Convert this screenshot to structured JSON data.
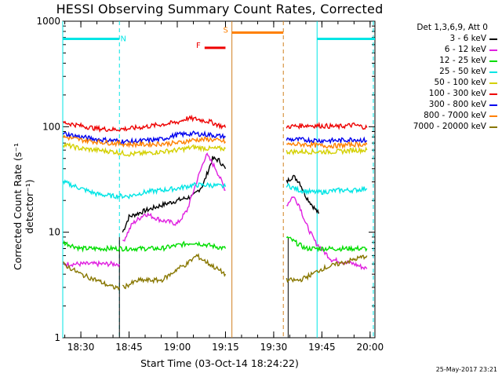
{
  "chart_data": {
    "type": "line",
    "title": "HESSI Observing Summary Count Rates, Corrected",
    "xlabel": "Start Time (03-Oct-14 18:24:22)",
    "ylabel": "Corrected Count Rate (s⁻¹ detector⁻¹)",
    "y_scale": "log",
    "ylim": [
      1,
      1000
    ],
    "xlim": [
      "18:24:22",
      "20:01:30"
    ],
    "y_ticks": [
      {
        "value": 1,
        "label": "1"
      },
      {
        "value": 10,
        "label": "10"
      },
      {
        "value": 100,
        "label": "100"
      },
      {
        "value": 1000,
        "label": "1000"
      }
    ],
    "x_ticks": [
      {
        "value": "18:30",
        "label": "18:30"
      },
      {
        "value": "18:45",
        "label": "18:45"
      },
      {
        "value": "19:00",
        "label": "19:00"
      },
      {
        "value": "19:15",
        "label": "19:15"
      },
      {
        "value": "19:30",
        "label": "19:30"
      },
      {
        "value": "19:45",
        "label": "19:45"
      },
      {
        "value": "20:00",
        "label": "20:00"
      }
    ],
    "legend_header": "Det 1,3,6,9, Att 0",
    "legend_position": "right",
    "series": [
      {
        "name": "3 - 6 keV",
        "color": "#000000",
        "segments": [
          {
            "x": [
              "18:43",
              "18:45",
              "18:50",
              "18:55",
              "19:00",
              "19:05",
              "19:08",
              "19:11",
              "19:13",
              "19:15"
            ],
            "y": [
              10,
              14,
              16,
              18,
              20,
              22,
              28,
              50,
              48,
              40
            ]
          },
          {
            "x": [
              "19:34",
              "19:36",
              "19:38",
              "19:40",
              "19:42",
              "19:44"
            ],
            "y": [
              30,
              34,
              30,
              22,
              18,
              15
            ]
          }
        ]
      },
      {
        "name": "6 - 12 keV",
        "color": "#e020e0",
        "segments": [
          {
            "x": [
              "18:24:30",
              "18:30",
              "18:35",
              "18:40",
              "18:42"
            ],
            "y": [
              5,
              5,
              5,
              5,
              5
            ]
          },
          {
            "x": [
              "18:43",
              "18:46",
              "18:50",
              "18:55",
              "19:00",
              "19:03",
              "19:06",
              "19:09",
              "19:12",
              "19:15"
            ],
            "y": [
              8,
              12,
              15,
              13,
              12,
              16,
              30,
              55,
              40,
              25
            ]
          },
          {
            "x": [
              "19:34",
              "19:36",
              "19:38",
              "19:40",
              "19:43",
              "19:48",
              "19:55",
              "19:59"
            ],
            "y": [
              18,
              22,
              18,
              12,
              8,
              5.5,
              5,
              4.5
            ]
          }
        ]
      },
      {
        "name": "12 - 25 keV",
        "color": "#00dd00",
        "segments": [
          {
            "x": [
              "18:24:30",
              "18:30",
              "18:40",
              "18:50",
              "18:55",
              "19:00",
              "19:05",
              "19:10",
              "19:15"
            ],
            "y": [
              8,
              7,
              7,
              7,
              7,
              7.5,
              8,
              7.5,
              7
            ]
          },
          {
            "x": [
              "19:34",
              "19:40",
              "19:45",
              "19:50",
              "19:55",
              "19:59"
            ],
            "y": [
              9,
              7,
              7,
              7,
              7,
              7
            ]
          }
        ]
      },
      {
        "name": "25 - 50 keV",
        "color": "#00e5e5",
        "segments": [
          {
            "x": [
              "18:24:30",
              "18:30",
              "18:35",
              "18:40",
              "18:45",
              "18:50",
              "18:55",
              "19:00",
              "19:05",
              "19:10",
              "19:15"
            ],
            "y": [
              30,
              26,
              23,
              22,
              22,
              24,
              25,
              26,
              28,
              28,
              27
            ]
          },
          {
            "x": [
              "19:34",
              "19:38",
              "19:42",
              "19:45",
              "19:50",
              "19:55",
              "19:59"
            ],
            "y": [
              28,
              25,
              24,
              24,
              25,
              25,
              26
            ]
          }
        ]
      },
      {
        "name": "50 - 100 keV",
        "color": "#d4d000",
        "segments": [
          {
            "x": [
              "18:24:30",
              "18:30",
              "18:35",
              "18:40",
              "18:45",
              "18:50",
              "18:55",
              "19:00",
              "19:05",
              "19:10",
              "19:15"
            ],
            "y": [
              68,
              62,
              60,
              58,
              55,
              56,
              58,
              60,
              64,
              62,
              62
            ]
          },
          {
            "x": [
              "19:34",
              "19:40",
              "19:45",
              "19:50",
              "19:55",
              "19:59"
            ],
            "y": [
              58,
              58,
              58,
              58,
              60,
              60
            ]
          }
        ]
      },
      {
        "name": "100 - 300 keV",
        "color": "#ee0000",
        "segments": [
          {
            "x": [
              "18:24:30",
              "18:30",
              "18:35",
              "18:40",
              "18:45",
              "18:50",
              "18:55",
              "19:00",
              "19:03",
              "19:06",
              "19:10",
              "19:15"
            ],
            "y": [
              110,
              102,
              96,
              94,
              96,
              100,
              105,
              110,
              120,
              118,
              112,
              98
            ]
          },
          {
            "x": [
              "19:34",
              "19:40",
              "19:45",
              "19:50",
              "19:55",
              "19:59"
            ],
            "y": [
              100,
              103,
              102,
              100,
              104,
              98
            ]
          }
        ]
      },
      {
        "name": "300 - 800 keV",
        "color": "#0000ee",
        "segments": [
          {
            "x": [
              "18:24:30",
              "18:30",
              "18:35",
              "18:40",
              "18:45",
              "18:50",
              "18:55",
              "19:00",
              "19:05",
              "19:10",
              "19:15"
            ],
            "y": [
              86,
              80,
              76,
              74,
              72,
              74,
              76,
              84,
              86,
              84,
              80
            ]
          },
          {
            "x": [
              "19:34",
              "19:40",
              "19:45",
              "19:50",
              "19:55",
              "19:59"
            ],
            "y": [
              76,
              75,
              74,
              74,
              76,
              74
            ]
          }
        ]
      },
      {
        "name": "800 - 7000 keV",
        "color": "#ff8000",
        "segments": [
          {
            "x": [
              "18:24:30",
              "18:30",
              "18:35",
              "18:40",
              "18:45",
              "18:50",
              "18:55",
              "19:00",
              "19:05",
              "19:10",
              "19:15"
            ],
            "y": [
              80,
              75,
              72,
              70,
              68,
              68,
              69,
              70,
              75,
              76,
              72
            ]
          },
          {
            "x": [
              "19:34",
              "19:40",
              "19:45",
              "19:50",
              "19:55",
              "19:59"
            ],
            "y": [
              68,
              68,
              66,
              66,
              68,
              68
            ]
          }
        ]
      },
      {
        "name": "7000 - 20000 keV",
        "color": "#887700",
        "segments": [
          {
            "x": [
              "18:24:30",
              "18:30",
              "18:35",
              "18:40",
              "18:42"
            ],
            "y": [
              5,
              4,
              3.5,
              3,
              3
            ]
          },
          {
            "x": [
              "18:43",
              "18:48",
              "18:52",
              "18:55",
              "18:58",
              "19:00",
              "19:03",
              "19:06",
              "19:10",
              "19:15"
            ],
            "y": [
              3,
              3.5,
              3.5,
              3.5,
              4,
              4.5,
              5,
              6,
              5,
              4
            ]
          },
          {
            "x": [
              "19:34",
              "19:38",
              "19:42",
              "19:45",
              "19:50",
              "19:55",
              "19:59"
            ],
            "y": [
              3.5,
              3.5,
              4,
              4.5,
              5,
              5.5,
              6
            ]
          }
        ]
      }
    ],
    "status_flags": [
      {
        "label": "N",
        "color": "#00e5e5",
        "y": 680,
        "x": [
          "18:24:22",
          "18:42:00"
        ],
        "style": "line"
      },
      {
        "label": "N",
        "color": "#00e5e5",
        "y": 680,
        "x": [
          "19:43:30",
          "20:01:30"
        ],
        "style": "line",
        "unlabeled": true
      },
      {
        "label": "F",
        "color": "#ee0000",
        "y": 560,
        "x": [
          "19:08:30",
          "19:15:00"
        ],
        "style": "line"
      },
      {
        "label": "S",
        "color": "#ff8000",
        "y": 780,
        "x": [
          "19:17:00",
          "19:33:00"
        ],
        "style": "line"
      }
    ],
    "vertical_markers": [
      {
        "x": "18:24:22",
        "color": "#00e5e5",
        "style": "solid"
      },
      {
        "x": "18:42:00",
        "color": "#00e5e5",
        "style": "dashed"
      },
      {
        "x": "19:43:30",
        "color": "#00e5e5",
        "style": "solid"
      },
      {
        "x": "20:01:00",
        "color": "#00e5e5",
        "style": "dashed"
      },
      {
        "x": "19:17:00",
        "color": "#d08020",
        "style": "solid"
      },
      {
        "x": "19:33:00",
        "color": "#d08020",
        "style": "dashed"
      }
    ],
    "gaps": [
      {
        "x": [
          "18:42:00",
          "18:43:00"
        ],
        "color": "#000000",
        "style": "solid"
      },
      {
        "x": [
          "19:34:30",
          "19:34:30"
        ],
        "color": "#000000",
        "style": "solid"
      }
    ],
    "timestamp": "25-May-2017 23:21"
  }
}
